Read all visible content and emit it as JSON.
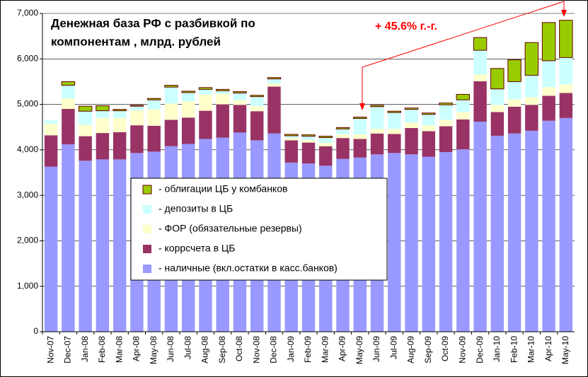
{
  "chart_data": {
    "type": "stacked_bar",
    "title": [
      "Денежная база РФ с разбивкой по",
      "компонентам , млрд. рублей"
    ],
    "annotation": "+ 45.6% г.-г.",
    "categories": [
      "Nov-07",
      "Dec-07",
      "Jan-08",
      "Feb-08",
      "Mar-08",
      "Apr-08",
      "May-08",
      "Jun-08",
      "Jul-08",
      "Aug-08",
      "Sep-08",
      "Oct-08",
      "Nov-08",
      "Dec-08",
      "Jan-09",
      "Feb-09",
      "Mar-09",
      "Apr-09",
      "May-09",
      "Jun-09",
      "Jul-09",
      "Aug-09",
      "Sep-09",
      "Oct-09",
      "Nov-09",
      "Dec-09",
      "Jan-10",
      "Feb-10",
      "Mar-10",
      "Apr-10",
      "May-10"
    ],
    "series": [
      {
        "name": "- наличные (вкл.остатки в касс.банков)",
        "color": "#9999ff",
        "values": [
          3630,
          4120,
          3760,
          3790,
          3790,
          3930,
          3960,
          4080,
          4130,
          4240,
          4270,
          4380,
          4210,
          4360,
          3720,
          3700,
          3650,
          3800,
          3830,
          3900,
          3930,
          3900,
          3850,
          3950,
          4010,
          4620,
          4310,
          4360,
          4420,
          4640,
          4700
        ]
      },
      {
        "name": "- коррсчета в ЦБ",
        "color": "#993366",
        "values": [
          690,
          780,
          540,
          580,
          600,
          610,
          570,
          580,
          580,
          620,
          730,
          610,
          640,
          1030,
          490,
          460,
          430,
          460,
          410,
          460,
          420,
          580,
          560,
          570,
          660,
          890,
          520,
          590,
          570,
          550,
          550
        ]
      },
      {
        "name": "- ФОР (обязательные резервы)",
        "color": "#ffffcc",
        "values": [
          250,
          230,
          250,
          330,
          310,
          330,
          360,
          360,
          360,
          360,
          230,
          100,
          110,
          70,
          50,
          60,
          70,
          80,
          100,
          100,
          110,
          120,
          130,
          140,
          160,
          150,
          160,
          160,
          170,
          190,
          190
        ]
      },
      {
        "name": "- депозиты в ЦБ",
        "color": "#ccffff",
        "values": [
          80,
          290,
          300,
          160,
          160,
          90,
          210,
          360,
          190,
          110,
          70,
          160,
          210,
          100,
          50,
          80,
          120,
          120,
          350,
          490,
          360,
          290,
          240,
          330,
          270,
          530,
          350,
          390,
          480,
          580,
          590
        ]
      },
      {
        "name": "- облигации ЦБ у комбанков",
        "color": "#99cc00",
        "values": [
          0,
          80,
          110,
          110,
          30,
          20,
          30,
          40,
          30,
          40,
          30,
          30,
          30,
          30,
          30,
          30,
          30,
          30,
          30,
          30,
          30,
          30,
          30,
          40,
          120,
          280,
          450,
          480,
          720,
          840,
          820
        ]
      }
    ],
    "ylim": [
      0,
      7000
    ],
    "yticks": [
      0,
      {
        "value": 1000,
        "label": "1,000"
      },
      {
        "value": 2000,
        "label": "2,000"
      },
      {
        "value": 3000,
        "label": "3,000"
      },
      {
        "value": 4000,
        "label": "4,000"
      },
      {
        "value": 5000,
        "label": "5,000"
      },
      {
        "value": 6000,
        "label": "6,000"
      },
      {
        "value": 7000,
        "label": "7,000"
      }
    ],
    "grid": true
  }
}
